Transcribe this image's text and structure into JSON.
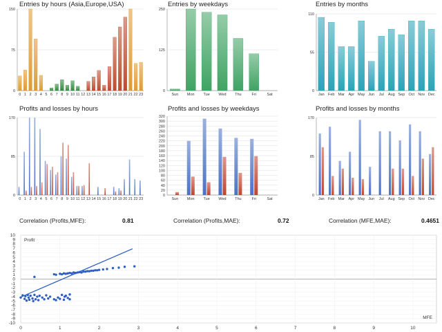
{
  "colors": {
    "hours_asia": "#e09a30",
    "hours_europe": "#2e8b3a",
    "hours_usa": "#c04a2e",
    "weekday_bar": "#3fa363",
    "month_bar": "#2aa3b8",
    "profit": "#4a72c4",
    "loss": "#c0442e",
    "scatter": "#2f5fc0",
    "grid": "#dddddd"
  },
  "correlations": [
    {
      "label": "Correlation (Profits,MFE):",
      "value": "0.81"
    },
    {
      "label": "Correlation (Profits,MAE):",
      "value": "0.72"
    },
    {
      "label": "Correlation (MFE,MAE):",
      "value": "0.4651"
    }
  ],
  "chart_data": [
    {
      "id": "entries_hours",
      "type": "bar",
      "title": "Entries by hours (Asia,Europe,USA)",
      "categories": [
        "0",
        "1",
        "2",
        "3",
        "4",
        "5",
        "6",
        "7",
        "8",
        "9",
        "10",
        "11",
        "12",
        "13",
        "14",
        "15",
        "16",
        "17",
        "18",
        "19",
        "20",
        "21",
        "22",
        "23"
      ],
      "values": [
        27,
        38,
        150,
        95,
        28,
        0,
        5,
        12,
        20,
        10,
        18,
        8,
        0,
        17,
        25,
        37,
        10,
        44,
        98,
        117,
        135,
        150,
        50,
        52
      ],
      "ylim": [
        0,
        150
      ],
      "yticks": [
        0,
        75,
        150
      ]
    },
    {
      "id": "entries_weekdays",
      "type": "bar",
      "title": "Entries by weekdays",
      "categories": [
        "Sun",
        "Mon",
        "Tue",
        "Wed",
        "Thu",
        "Fri",
        "Sat"
      ],
      "values": [
        5,
        250,
        240,
        232,
        160,
        113,
        0
      ],
      "ylim": [
        0,
        250
      ],
      "yticks": [
        0,
        125,
        250
      ]
    },
    {
      "id": "entries_months",
      "type": "bar",
      "title": "Entries by months",
      "categories": [
        "Jan",
        "Feb",
        "Mar",
        "Apr",
        "May",
        "Jun",
        "Jul",
        "Aug",
        "Sep",
        "Oct",
        "Nov",
        "Dec"
      ],
      "values": [
        105,
        98,
        63,
        63,
        100,
        42,
        78,
        88,
        80,
        100,
        100,
        88
      ],
      "ylim": [
        0,
        110
      ],
      "yticks": [
        0,
        55,
        110
      ]
    },
    {
      "id": "pl_hours",
      "type": "bar",
      "title": "Profits and losses by hours",
      "categories": [
        "0",
        "1",
        "2",
        "3",
        "4",
        "5",
        "6",
        "7",
        "8",
        "9",
        "10",
        "11",
        "12",
        "13",
        "14",
        "15",
        "16",
        "17",
        "18",
        "19",
        "20",
        "21",
        "22",
        "23"
      ],
      "series": [
        {
          "name": "Profits",
          "values": [
            18,
            95,
            170,
            170,
            145,
            75,
            55,
            45,
            85,
            80,
            40,
            20,
            20,
            0,
            0,
            18,
            0,
            0,
            18,
            15,
            35,
            78,
            35,
            32
          ]
        },
        {
          "name": "Losses",
          "values": [
            0,
            10,
            18,
            20,
            28,
            68,
            62,
            50,
            115,
            110,
            50,
            20,
            22,
            70,
            0,
            0,
            15,
            0,
            8,
            10,
            0,
            0,
            0,
            0
          ]
        }
      ],
      "ylim": [
        0,
        170
      ],
      "yticks": [
        0,
        85,
        170
      ]
    },
    {
      "id": "pl_weekdays",
      "type": "bar",
      "title": "Profits and losses by weekdays",
      "categories": [
        "Sun",
        "Mon",
        "Tue",
        "Wed",
        "Thu",
        "Fri",
        "Sat"
      ],
      "series": [
        {
          "name": "Profits",
          "values": [
            0,
            220,
            310,
            270,
            232,
            228,
            0
          ]
        },
        {
          "name": "Losses",
          "values": [
            12,
            75,
            52,
            155,
            90,
            158,
            0
          ]
        }
      ],
      "ylim": [
        0,
        320
      ],
      "yticks": [
        0,
        20,
        40,
        60,
        80,
        100,
        120,
        140,
        160,
        180,
        200,
        220,
        240,
        260,
        280,
        300,
        320
      ]
    },
    {
      "id": "pl_months",
      "type": "bar",
      "title": "Profits and losses by months",
      "categories": [
        "Jan",
        "Feb",
        "Mar",
        "Apr",
        "May",
        "Jun",
        "Jul",
        "Aug",
        "Sep",
        "Oct",
        "Nov",
        "Dec"
      ],
      "series": [
        {
          "name": "Profits",
          "values": [
            135,
            150,
            75,
            95,
            165,
            62,
            140,
            140,
            120,
            155,
            140,
            90
          ]
        },
        {
          "name": "Losses",
          "values": [
            105,
            42,
            58,
            38,
            35,
            0,
            0,
            58,
            58,
            42,
            80,
            105
          ]
        }
      ],
      "ylim": [
        0,
        170
      ],
      "yticks": [
        0,
        85,
        170
      ]
    },
    {
      "id": "mfe_scatter",
      "type": "scatter",
      "xlabel": "MFE",
      "ylabel": "Profit",
      "xlim": [
        0,
        10.6
      ],
      "ylim": [
        -10,
        10
      ],
      "xticks": [
        0,
        1,
        2,
        3,
        4,
        5,
        6,
        7,
        8,
        9,
        10
      ],
      "yticks": [
        10,
        9,
        8,
        7,
        6,
        5,
        4,
        3,
        2,
        1,
        0,
        -1,
        -2,
        -3,
        -4,
        -5,
        -6,
        -7,
        -8,
        -9,
        -10
      ],
      "trendline": {
        "x": [
          0,
          2.85
        ],
        "y": [
          -4.1,
          6.9
        ]
      },
      "points": [
        [
          0.0,
          -4.2
        ],
        [
          0.05,
          -3.7
        ],
        [
          0.1,
          -4.5
        ],
        [
          0.12,
          -3.9
        ],
        [
          0.15,
          -4.9
        ],
        [
          0.18,
          -3.6
        ],
        [
          0.2,
          -4.2
        ],
        [
          0.22,
          -4.7
        ],
        [
          0.25,
          -3.8
        ],
        [
          0.3,
          -4.4
        ],
        [
          0.32,
          -5.0
        ],
        [
          0.35,
          -3.6
        ],
        [
          0.38,
          -4.6
        ],
        [
          0.42,
          -4.0
        ],
        [
          0.45,
          -4.8
        ],
        [
          0.48,
          -3.8
        ],
        [
          0.55,
          -4.2
        ],
        [
          0.6,
          -4.6
        ],
        [
          0.65,
          -3.7
        ],
        [
          0.7,
          -4.4
        ],
        [
          0.75,
          -4.0
        ],
        [
          0.85,
          -4.6
        ],
        [
          0.9,
          -4.8
        ],
        [
          0.95,
          -4.2
        ],
        [
          1.0,
          -4.5
        ],
        [
          1.05,
          -3.6
        ],
        [
          1.1,
          -4.7
        ],
        [
          1.12,
          -4.0
        ],
        [
          1.15,
          -3.8
        ],
        [
          1.2,
          -4.3
        ],
        [
          1.25,
          -4.6
        ],
        [
          1.25,
          -3.5
        ],
        [
          0.35,
          0.5
        ],
        [
          0.85,
          1.1
        ],
        [
          0.9,
          1.0
        ],
        [
          1.0,
          1.2
        ],
        [
          1.05,
          1.1
        ],
        [
          1.1,
          1.3
        ],
        [
          1.15,
          1.2
        ],
        [
          1.2,
          1.3
        ],
        [
          1.25,
          1.4
        ],
        [
          1.3,
          1.3
        ],
        [
          1.35,
          1.5
        ],
        [
          1.4,
          1.4
        ],
        [
          1.45,
          1.5
        ],
        [
          1.5,
          1.6
        ],
        [
          1.55,
          1.5
        ],
        [
          1.6,
          1.7
        ],
        [
          1.65,
          1.7
        ],
        [
          1.7,
          1.8
        ],
        [
          1.75,
          1.8
        ],
        [
          1.8,
          1.9
        ],
        [
          1.85,
          1.9
        ],
        [
          1.9,
          2.0
        ],
        [
          1.95,
          2.0
        ],
        [
          2.0,
          2.1
        ],
        [
          2.1,
          2.2
        ],
        [
          2.2,
          2.3
        ],
        [
          2.35,
          2.5
        ],
        [
          2.5,
          2.6
        ],
        [
          2.65,
          2.8
        ],
        [
          2.9,
          2.9
        ]
      ]
    }
  ]
}
